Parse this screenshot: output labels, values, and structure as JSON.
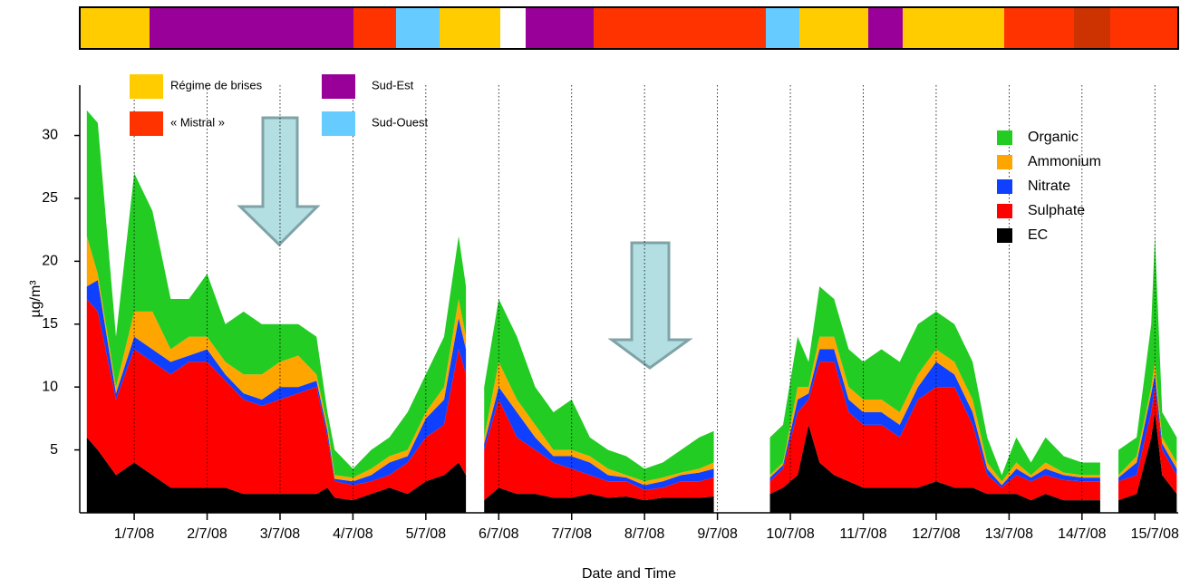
{
  "chart_data": {
    "type": "stacked-area",
    "ylabel": "µg/m³",
    "xlabel": "Date and Time",
    "xlim": [
      0.34,
      15.32
    ],
    "ylim": [
      0,
      34
    ],
    "xticks": [
      {
        "value": 1,
        "label": "1/7/08"
      },
      {
        "value": 2,
        "label": "2/7/08"
      },
      {
        "value": 3,
        "label": "3/7/08"
      },
      {
        "value": 4,
        "label": "4/7/08"
      },
      {
        "value": 5,
        "label": "5/7/08"
      },
      {
        "value": 6,
        "label": "6/7/08"
      },
      {
        "value": 7,
        "label": "7/7/08"
      },
      {
        "value": 8,
        "label": "8/7/08"
      },
      {
        "value": 9,
        "label": "9/7/08"
      },
      {
        "value": 10,
        "label": "10/7/08"
      },
      {
        "value": 11,
        "label": "11/7/08"
      },
      {
        "value": 12,
        "label": "12/7/08"
      },
      {
        "value": 13,
        "label": "13/7/08"
      },
      {
        "value": 14,
        "label": "14/7/08"
      },
      {
        "value": 15,
        "label": "15/7/08"
      }
    ],
    "yticks": [
      5,
      10,
      15,
      20,
      25,
      30
    ],
    "grid": true,
    "legend": "upper right",
    "regime_legend": [
      {
        "name": "Régime de brises",
        "color": "#ffcc00"
      },
      {
        "name": "« Mistral »",
        "color": "#ff3300"
      },
      {
        "name": "Sud-Est",
        "color": "#990099"
      },
      {
        "name": "Sud-Ouest",
        "color": "#66ccff"
      }
    ],
    "x": [
      0.35,
      0.5,
      0.75,
      1,
      1.25,
      1.5,
      1.75,
      2,
      2.25,
      2.5,
      2.75,
      3,
      3.25,
      3.5,
      3.65,
      3.75,
      4,
      4.25,
      4.5,
      4.75,
      5,
      5.25,
      5.45,
      5.55,
      5.65,
      5.8,
      6,
      6.25,
      6.5,
      6.75,
      7,
      7.25,
      7.5,
      7.75,
      8,
      8.25,
      8.5,
      8.75,
      8.95,
      9.1,
      9.72,
      9.9,
      10.1,
      10.25,
      10.4,
      10.6,
      10.8,
      11,
      11.25,
      11.5,
      11.75,
      12,
      12.25,
      12.5,
      12.7,
      12.9,
      13.1,
      13.3,
      13.5,
      13.75,
      14,
      14.25,
      14.4,
      14.5,
      14.75,
      14.95,
      15,
      15.1,
      15.3
    ],
    "series": [
      {
        "name": "Organic",
        "color": "#22cc22",
        "values": [
          10,
          12,
          4,
          11,
          8,
          4,
          3,
          5,
          3,
          5,
          4,
          3,
          2.5,
          3,
          1,
          2,
          0.7,
          1.5,
          1.5,
          3,
          3,
          4,
          5,
          4,
          null,
          4,
          5,
          5,
          3,
          3,
          4,
          1.5,
          1.5,
          1.5,
          1,
          1.2,
          1.8,
          2.5,
          2.5,
          null,
          3,
          3,
          4,
          2,
          4,
          3,
          3,
          3,
          4,
          4,
          4,
          3,
          3,
          3,
          2,
          0.5,
          2,
          1,
          2,
          1.3,
          1,
          1,
          null,
          2,
          1.5,
          5,
          10,
          2,
          2
        ]
      },
      {
        "name": "Ammonium",
        "color": "#ffa500",
        "values": [
          4,
          0.5,
          0.5,
          2,
          3,
          1,
          1.5,
          1,
          1,
          1.5,
          2,
          2,
          2.5,
          0.5,
          0.5,
          0.3,
          0.3,
          0.5,
          0.5,
          0.5,
          0.5,
          1,
          1.5,
          1,
          null,
          0.5,
          2,
          1,
          1,
          0.5,
          0.5,
          0.5,
          0.5,
          0.2,
          0.3,
          0.3,
          0.2,
          0.3,
          0.5,
          null,
          0.2,
          0.2,
          1,
          0.5,
          1,
          1,
          1,
          1,
          1,
          1,
          1,
          1,
          1,
          1,
          0.5,
          0.3,
          0.5,
          0.2,
          0.5,
          0.2,
          0.2,
          0.2,
          null,
          0.2,
          0.5,
          0.5,
          1,
          0.5,
          0.5
        ]
      },
      {
        "name": "Nitrate",
        "color": "#1040ff",
        "values": [
          1,
          2.5,
          0.5,
          1,
          1,
          1,
          0.5,
          1,
          0.5,
          0.5,
          0.5,
          1,
          0.5,
          0.5,
          0.5,
          0.2,
          0.3,
          0.5,
          1,
          0.5,
          1.5,
          2,
          2.5,
          2,
          null,
          0.5,
          1,
          2,
          1,
          0.5,
          1,
          1,
          0.5,
          0.3,
          0.4,
          0.5,
          0.5,
          0.7,
          0.7,
          null,
          0.3,
          0.3,
          1,
          0.5,
          1,
          1,
          1,
          1,
          1,
          1,
          1,
          2,
          1,
          1,
          0.5,
          0.2,
          0.5,
          0.3,
          0.5,
          0.4,
          0.3,
          0.3,
          null,
          0.3,
          1,
          1.5,
          1,
          0.5,
          0.5
        ]
      },
      {
        "name": "Sulphate",
        "color": "#ff0000",
        "values": [
          11,
          11,
          6,
          9,
          9,
          9,
          10,
          10,
          8.5,
          7.5,
          7,
          7.5,
          8,
          8.5,
          4,
          1.3,
          1.2,
          1,
          1,
          2.5,
          3.5,
          4,
          9,
          8,
          null,
          4,
          7,
          4.5,
          3.5,
          2.8,
          2.3,
          1.5,
          1.3,
          1.2,
          0.8,
          0.8,
          1.3,
          1.3,
          1.5,
          null,
          1,
          1.5,
          5,
          2,
          8,
          9,
          5.5,
          5,
          5,
          4,
          7,
          7.5,
          8,
          5,
          1.5,
          0.5,
          1.5,
          1.5,
          1.5,
          1.6,
          1.5,
          1.5,
          null,
          1.5,
          1.5,
          2,
          2,
          2,
          1.5
        ]
      },
      {
        "name": "EC",
        "color": "#000000",
        "values": [
          6,
          5,
          3,
          4,
          3,
          2,
          2,
          2,
          2,
          1.5,
          1.5,
          1.5,
          1.5,
          1.5,
          2,
          1.2,
          1,
          1.5,
          2,
          1.5,
          2.5,
          3,
          4,
          3,
          null,
          1,
          2,
          1.5,
          1.5,
          1.2,
          1.2,
          1.5,
          1.2,
          1.3,
          1,
          1.2,
          1.2,
          1.2,
          1.3,
          null,
          1.5,
          2,
          3,
          7,
          4,
          3,
          2.5,
          2,
          2,
          2,
          2,
          2.5,
          2,
          2,
          1.5,
          1.5,
          1.5,
          1,
          1.5,
          1,
          1,
          1,
          null,
          1,
          1.5,
          6,
          8,
          3,
          1.5
        ]
      }
    ]
  }
}
